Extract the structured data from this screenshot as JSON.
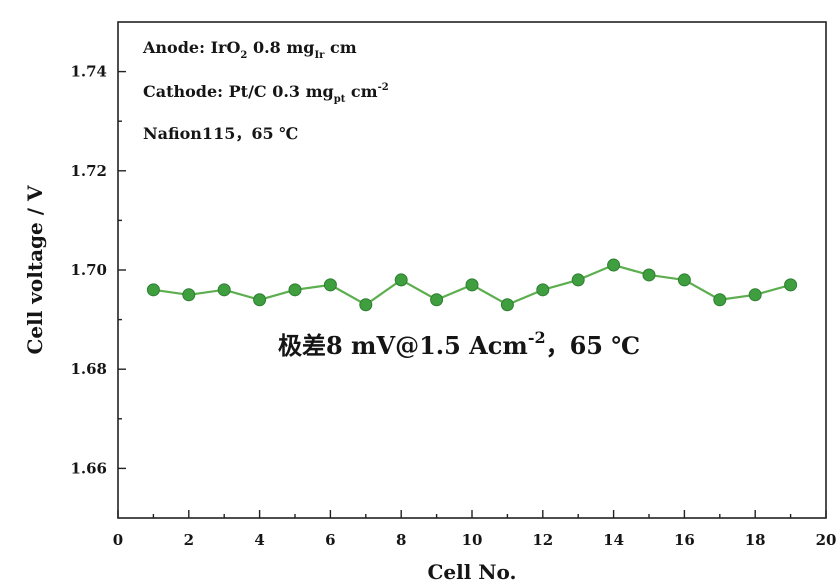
{
  "chart_data": {
    "type": "line",
    "title": "",
    "xlabel": "Cell No.",
    "ylabel": "Cell voltage / V",
    "xlim": [
      0,
      20
    ],
    "ylim": [
      1.65,
      1.75
    ],
    "xticks": [
      0,
      2,
      4,
      6,
      8,
      10,
      12,
      14,
      16,
      18,
      20
    ],
    "xtick_labels": [
      "0",
      "2",
      "4",
      "6",
      "8",
      "10",
      "12",
      "14",
      "16",
      "18",
      "20"
    ],
    "yticks": [
      1.66,
      1.68,
      1.7,
      1.72,
      1.74
    ],
    "ytick_labels": [
      "1.66",
      "1.68",
      "1.70",
      "1.72",
      "1.74"
    ],
    "grid": false,
    "legend": false,
    "x": [
      1,
      2,
      3,
      4,
      5,
      6,
      7,
      8,
      9,
      10,
      11,
      12,
      13,
      14,
      15,
      16,
      17,
      18,
      19
    ],
    "series": [
      {
        "values": [
          1.696,
          1.695,
          1.696,
          1.694,
          1.696,
          1.697,
          1.693,
          1.698,
          1.694,
          1.697,
          1.693,
          1.696,
          1.698,
          1.701,
          1.699,
          1.698,
          1.694,
          1.695,
          1.697
        ],
        "marker": "circle",
        "color": "#5cae4f",
        "marker_color": "#3f9f3f",
        "marker_edge_color": "#2e7d32"
      }
    ],
    "annotations": [
      {
        "parts": [
          {
            "text": "Anode: IrO"
          },
          {
            "text": "2",
            "style": "sub"
          },
          {
            "text": " 0.8 mg"
          },
          {
            "text": "Ir",
            "style": "sub"
          },
          {
            "text": " cm"
          }
        ]
      },
      {
        "parts": [
          {
            "text": "Cathode: Pt/C 0.3 mg"
          },
          {
            "text": "pt",
            "style": "sub"
          },
          {
            "text": " cm"
          },
          {
            "text": "-2",
            "style": "sup"
          }
        ]
      },
      {
        "parts": [
          {
            "text": "Nafion115，65 ℃"
          }
        ]
      },
      {
        "parts": [
          {
            "text": "极差8 mV@1.5 Acm"
          },
          {
            "text": "-2",
            "style": "sup"
          },
          {
            "text": "，65 ℃"
          }
        ]
      }
    ]
  }
}
